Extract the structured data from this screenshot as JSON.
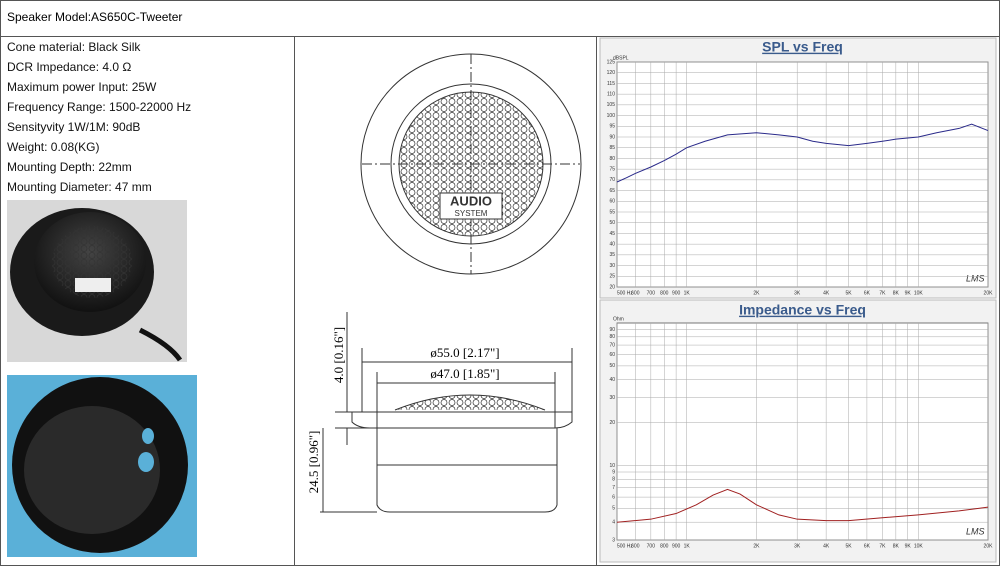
{
  "header": {
    "title": "Speaker Model:AS650C-Tweeter"
  },
  "specs": [
    "Cone material: Black Silk",
    "DCR Impedance: 4.0 Ω",
    "Maximum power Input: 25W",
    "Frequency Range: 1500-22000 Hz",
    "Sensityvity 1W/1M: 90dB",
    "Weight: 0.08(KG)",
    "Mounting Depth: 22mm",
    "Mounting Diameter: 47 mm"
  ],
  "drawing": {
    "brand": "AUDIO",
    "brand_sub": "SYSTEM",
    "outer_diameter": "ø55.0 [2.17\"]",
    "inner_diameter": "ø47.0 [1.85\"]",
    "flange_height": "4.0 [0.16\"]",
    "body_height": "24.5 [0.96\"]"
  },
  "chart_data": [
    {
      "type": "line",
      "title": "SPL vs Freq",
      "y_label": "dBSPL",
      "annotation": "LMS",
      "xlog": true,
      "ylog": false,
      "grid": true,
      "x": [
        500,
        550,
        600,
        700,
        800,
        900,
        1000,
        1200,
        1500,
        2000,
        2500,
        3000,
        3500,
        4000,
        5000,
        6000,
        7000,
        8000,
        10000,
        12000,
        15000,
        17000,
        20000
      ],
      "series": [
        {
          "color": "#2a2a8a",
          "values": [
            69,
            71,
            73,
            76,
            79,
            82,
            85,
            88,
            91,
            92,
            91,
            90,
            88,
            87,
            86,
            87,
            88,
            89,
            90,
            92,
            94,
            96,
            93
          ]
        }
      ],
      "xlim": [
        500,
        20000
      ],
      "xticks": [
        {
          "value": 500,
          "label": "500 Hz"
        },
        600,
        700,
        800,
        900,
        {
          "value": 1000,
          "label": "1K"
        },
        {
          "value": 2000,
          "label": "2K"
        },
        {
          "value": 3000,
          "label": "3K"
        },
        {
          "value": 4000,
          "label": "4K"
        },
        {
          "value": 5000,
          "label": "5K"
        },
        {
          "value": 6000,
          "label": "6K"
        },
        {
          "value": 7000,
          "label": "7K"
        },
        {
          "value": 8000,
          "label": "8K"
        },
        {
          "value": 9000,
          "label": "9K"
        },
        {
          "value": 10000,
          "label": "10K"
        },
        {
          "value": 20000,
          "label": "20K"
        }
      ],
      "ylim": [
        20,
        125
      ],
      "yticks": [
        20,
        25,
        30,
        35,
        40,
        45,
        50,
        55,
        60,
        65,
        70,
        75,
        80,
        85,
        90,
        95,
        100,
        105,
        110,
        115,
        120,
        125
      ]
    },
    {
      "type": "line",
      "title": "Impedance vs Freq",
      "y_label": "Ohm",
      "annotation": "LMS",
      "xlog": true,
      "ylog": true,
      "grid": true,
      "x": [
        500,
        700,
        900,
        1100,
        1300,
        1500,
        1700,
        2000,
        2500,
        3000,
        4000,
        5000,
        7000,
        10000,
        15000,
        20000
      ],
      "series": [
        {
          "color": "#a02020",
          "values": [
            4.0,
            4.2,
            4.6,
            5.3,
            6.2,
            6.8,
            6.3,
            5.3,
            4.5,
            4.2,
            4.1,
            4.1,
            4.3,
            4.5,
            4.8,
            5.1
          ]
        }
      ],
      "xlim": [
        500,
        20000
      ],
      "xticks": [
        {
          "value": 500,
          "label": "500 Hz"
        },
        600,
        700,
        800,
        900,
        {
          "value": 1000,
          "label": "1K"
        },
        {
          "value": 2000,
          "label": "2K"
        },
        {
          "value": 3000,
          "label": "3K"
        },
        {
          "value": 4000,
          "label": "4K"
        },
        {
          "value": 5000,
          "label": "5K"
        },
        {
          "value": 6000,
          "label": "6K"
        },
        {
          "value": 7000,
          "label": "7K"
        },
        {
          "value": 8000,
          "label": "8K"
        },
        {
          "value": 9000,
          "label": "9K"
        },
        {
          "value": 10000,
          "label": "10K"
        },
        {
          "value": 20000,
          "label": "20K"
        }
      ],
      "ylim": [
        3,
        100
      ],
      "yticks": [
        3,
        4,
        5,
        6,
        7,
        8,
        9,
        10,
        20,
        30,
        40,
        50,
        60,
        70,
        80,
        90
      ]
    }
  ]
}
